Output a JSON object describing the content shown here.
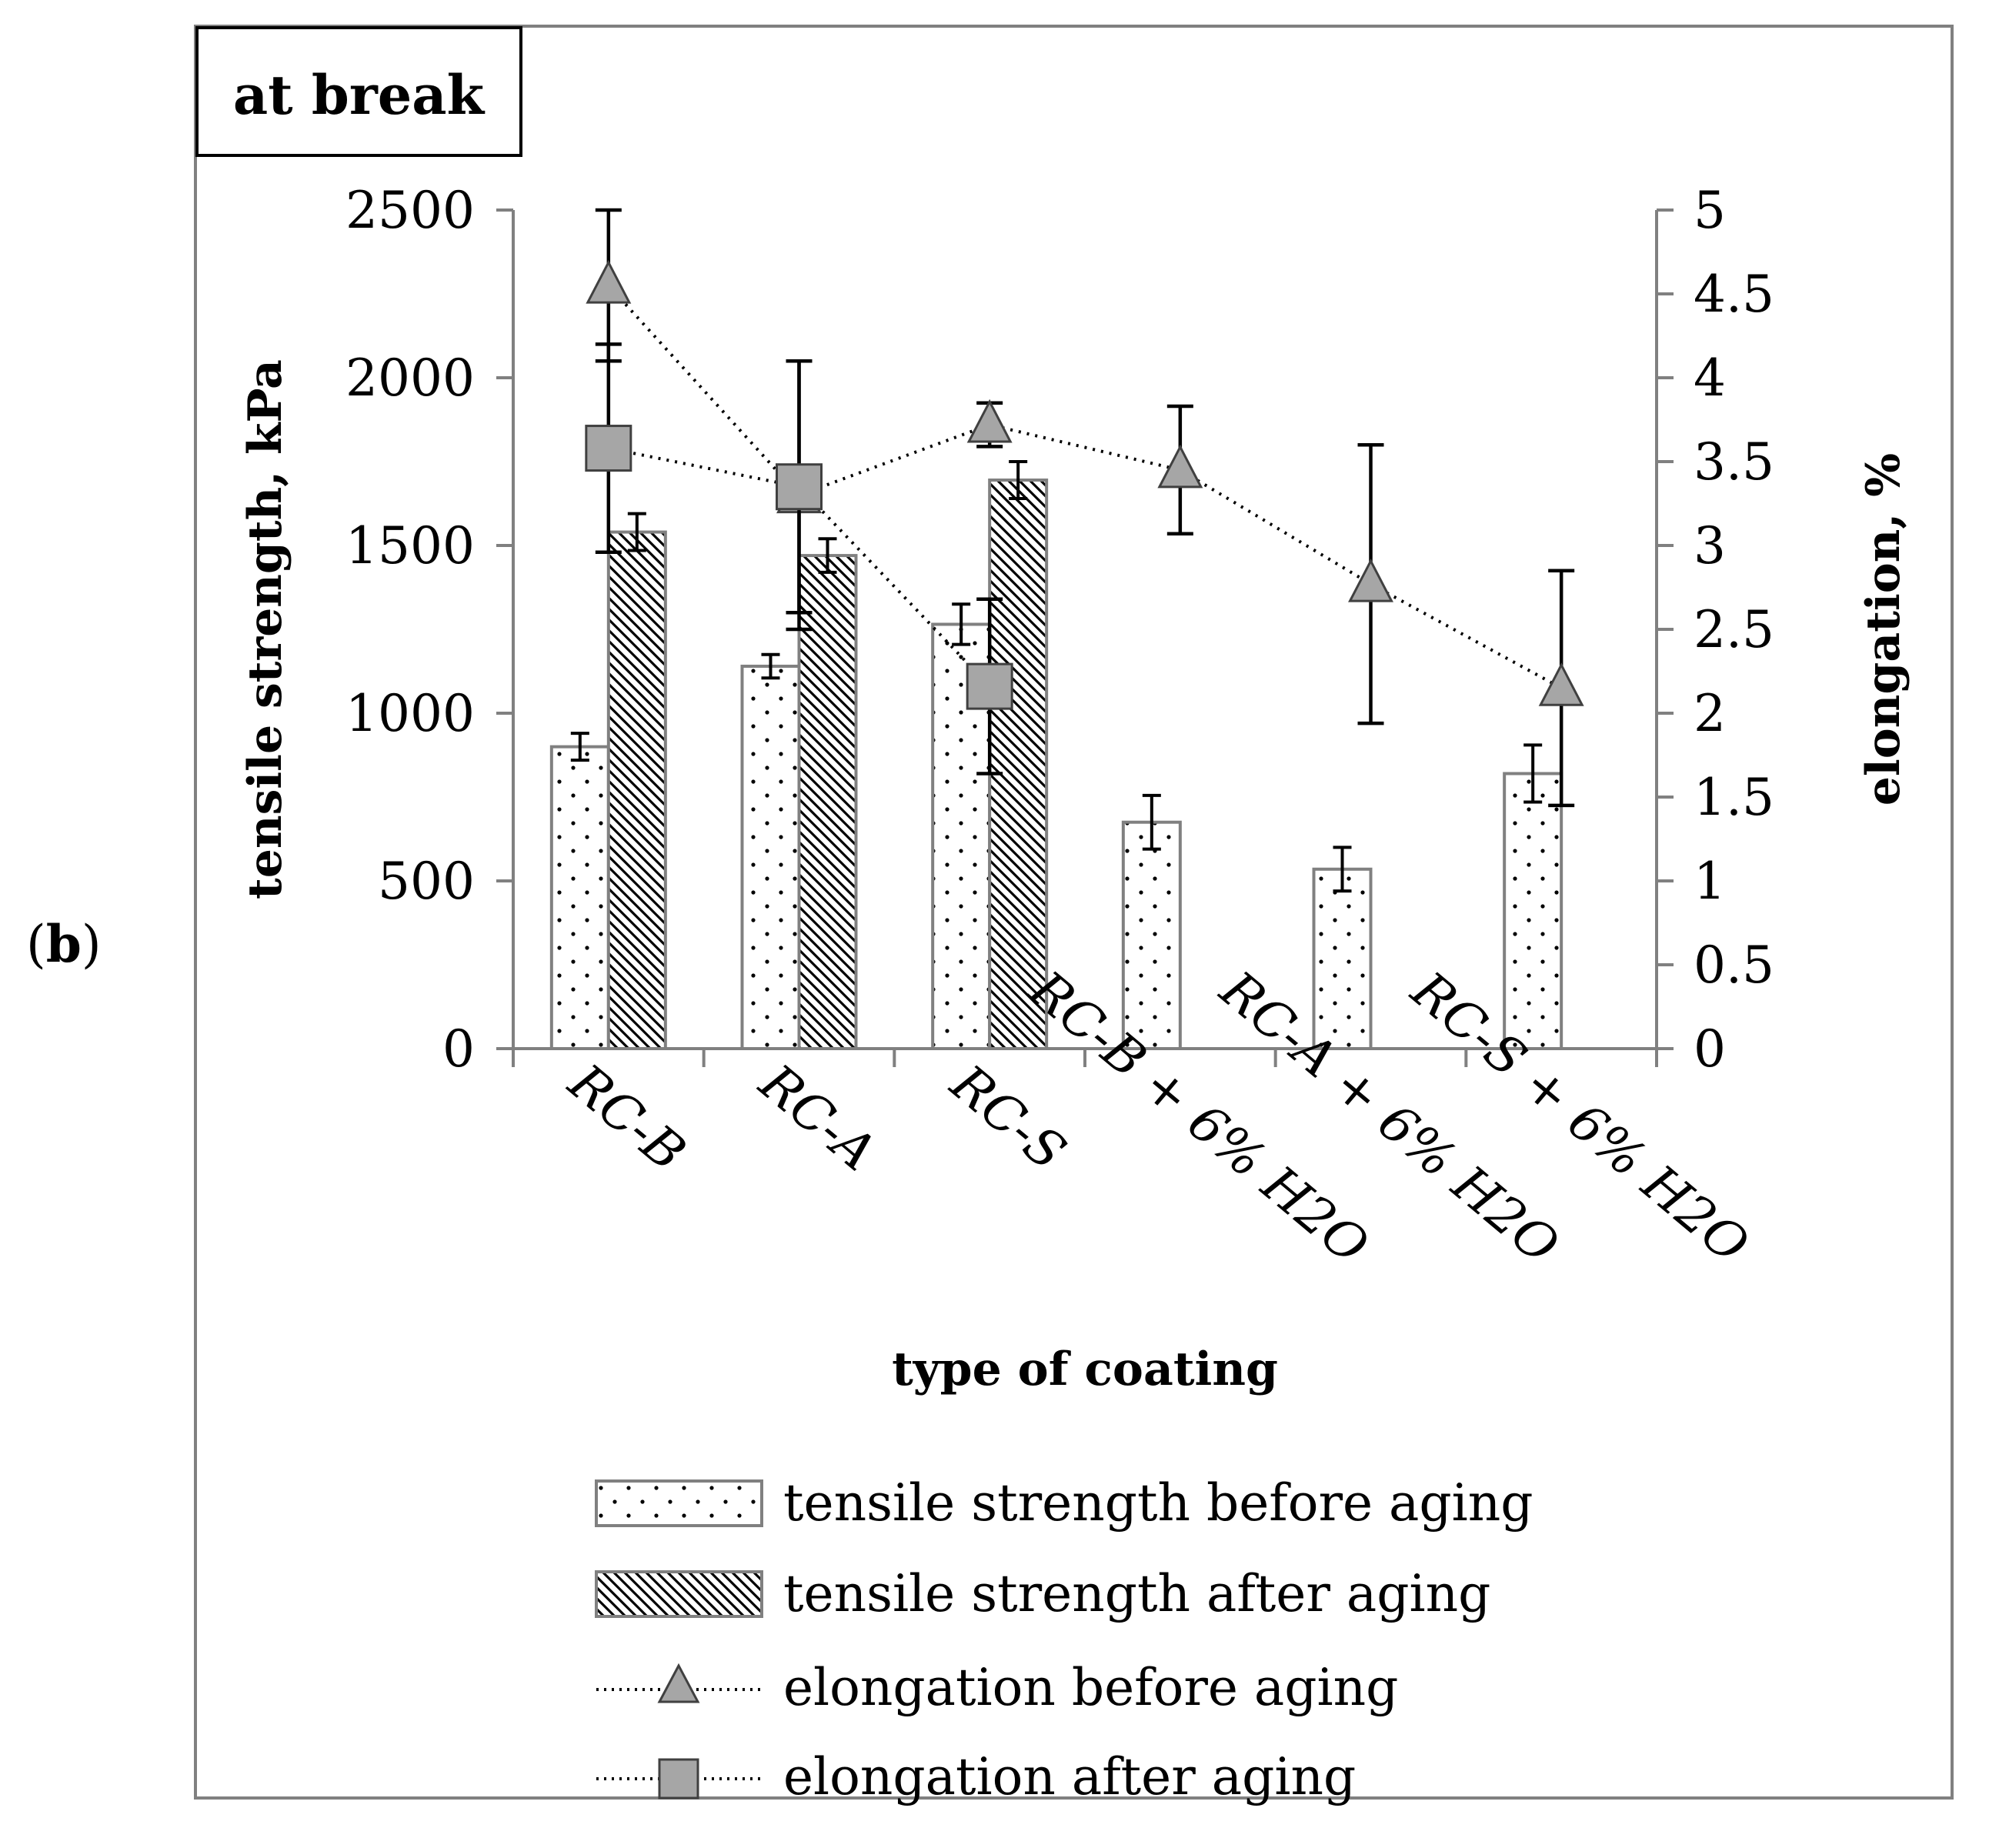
{
  "panel_label_open": "(",
  "panel_label_letter": "b",
  "panel_label_close": ")",
  "chart_data": {
    "type": "bar",
    "title": "at break",
    "xlabel": "type of coating",
    "ylabel": "tensile strength, kPa",
    "y2label": "elongation, %",
    "ylim": [
      0,
      2500
    ],
    "y2lim": [
      0,
      5
    ],
    "yticks": [
      "0",
      "500",
      "1000",
      "1500",
      "2000",
      "2500"
    ],
    "y2ticks": [
      "0",
      "0.5",
      "1",
      "1.5",
      "2",
      "2.5",
      "3",
      "3.5",
      "4",
      "4.5",
      "5"
    ],
    "categories": [
      "RC-B",
      "RC-A",
      "RC-S",
      "RC-B + 6% H2O",
      "RC-A + 6% H2O",
      "RC-S + 6% H2O"
    ],
    "series": [
      {
        "name": "tensile strength before aging",
        "kind": "bar",
        "axis": "left",
        "values": [
          900,
          1140,
          1265,
          675,
          535,
          820
        ],
        "errors": [
          40,
          35,
          60,
          80,
          65,
          85
        ]
      },
      {
        "name": "tensile strength after aging",
        "kind": "bar",
        "axis": "left",
        "values": [
          1540,
          1470,
          1695,
          null,
          null,
          null
        ],
        "errors": [
          55,
          50,
          55,
          null,
          null,
          null
        ]
      },
      {
        "name": "elongation before aging",
        "kind": "line",
        "marker": "triangle",
        "axis": "right",
        "values": [
          4.55,
          3.3,
          3.72,
          3.45,
          2.77,
          2.15
        ],
        "errors": [
          0.45,
          0.8,
          0.13,
          0.38,
          0.83,
          0.7
        ]
      },
      {
        "name": "elongation after aging",
        "kind": "line",
        "marker": "square",
        "axis": "right",
        "values": [
          3.58,
          3.35,
          2.16,
          null,
          null,
          null
        ],
        "errors": [
          0.62,
          0.75,
          0.52,
          null,
          null,
          null
        ]
      }
    ],
    "legend_position": "bottom"
  }
}
